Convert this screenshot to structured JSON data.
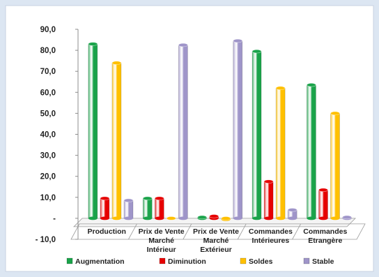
{
  "chart_data": {
    "type": "bar",
    "categories": [
      [
        "Production"
      ],
      [
        "Prix de Vente",
        "Marché",
        "Intérieur"
      ],
      [
        "Prix de Vente",
        "Marché",
        "Extérieur"
      ],
      [
        "Commandes",
        "Intérieures"
      ],
      [
        "Commandes",
        "Etrangère"
      ]
    ],
    "series": [
      {
        "name": "Augmentation",
        "color": "#1aa34a",
        "values": [
          83.0,
          9.5,
          0.5,
          79.5,
          63.5
        ]
      },
      {
        "name": "Diminution",
        "color": "#e60000",
        "values": [
          9.5,
          9.5,
          1.0,
          17.5,
          13.5
        ]
      },
      {
        "name": "Soldes",
        "color": "#ffc000",
        "values": [
          74.0,
          0.0,
          -0.5,
          62.0,
          50.0
        ]
      },
      {
        "name": "Stable",
        "color": "#9f95c9",
        "values": [
          8.5,
          82.5,
          84.5,
          4.0,
          0.5
        ]
      }
    ],
    "ylim": [
      -10,
      90
    ],
    "yticks": [
      -10,
      0,
      10,
      20,
      30,
      40,
      50,
      60,
      70,
      80,
      90
    ],
    "ytick_labels": [
      "- 10,0",
      "-",
      "10,0",
      "20,0",
      "30,0",
      "40,0",
      "50,0",
      "60,0",
      "70,0",
      "80,0",
      "90,0"
    ],
    "legend_position": "bottom",
    "background": "#dce6f2",
    "plot_background": "#ffffff"
  }
}
